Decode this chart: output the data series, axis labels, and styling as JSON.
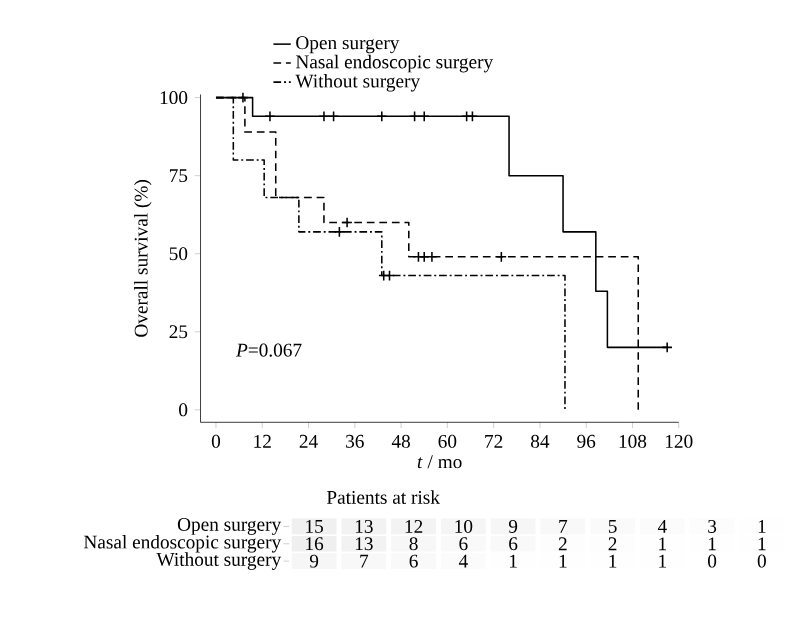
{
  "chart_data": [
    {
      "type": "step",
      "xlabel": "*t* / mo",
      "ylabel": "Overall survival (%)",
      "annotations": [
        "*P*=0.067"
      ],
      "xlim": [
        -4,
        120
      ],
      "ylim": [
        -4,
        101
      ],
      "xticks": [
        0,
        12,
        24,
        36,
        48,
        60,
        72,
        84,
        96,
        108,
        120
      ],
      "yticks": [
        0,
        25,
        50,
        75,
        100
      ],
      "legend": "top",
      "series": [
        {
          "name": "Open surgery",
          "color": "#000000",
          "line_style": "solid",
          "x": [
            0,
            9.5,
            76,
            90,
            98.5,
            101.5,
            117
          ],
          "values": [
            100,
            94,
            75,
            57,
            38,
            20,
            20
          ]
        },
        {
          "name": "Nasal endoscopic surgery",
          "color": "#000000",
          "line_style": "dashed",
          "x": [
            0,
            7.5,
            15.5,
            28,
            50,
            109.5
          ],
          "values": [
            100,
            89,
            68,
            60,
            49,
            0
          ]
        },
        {
          "name": "Without surgery",
          "color": "#000000",
          "line_style": "dashdot",
          "x": [
            0,
            4.5,
            12.5,
            21.5,
            43,
            90.5
          ],
          "values": [
            100,
            80,
            68,
            57,
            43,
            0
          ]
        },
        {
          "type": "scatter",
          "marker": "cross",
          "color": "#000000",
          "x": [
            7,
            14,
            28,
            30.5,
            43,
            51.5,
            54,
            65,
            66.5,
            117
          ],
          "values": [
            100,
            94,
            94,
            94,
            94,
            94,
            94,
            94,
            94,
            20
          ]
        },
        {
          "type": "scatter",
          "marker": "cross",
          "color": "#000000",
          "x": [
            34,
            52.5,
            54,
            56,
            74
          ],
          "values": [
            60,
            49,
            49,
            49,
            49
          ]
        },
        {
          "type": "scatter",
          "marker": "cross",
          "color": "#000000",
          "x": [
            32,
            43.5,
            45
          ],
          "values": [
            57,
            43,
            43
          ]
        }
      ]
    },
    {
      "type": "heatmap",
      "title": "Patients at risk",
      "categories": [
        null,
        null,
        null,
        null,
        null,
        null,
        null,
        null,
        null,
        null
      ],
      "y_categories": [
        "Open surgery",
        "Nasal endoscopic surgery",
        "Without surgery"
      ],
      "data_labels": true,
      "cells": [
        [
          15,
          13,
          12,
          10,
          9,
          7,
          5,
          4,
          3,
          1
        ],
        [
          16,
          13,
          8,
          6,
          6,
          2,
          2,
          1,
          1,
          1
        ],
        [
          9,
          7,
          6,
          4,
          1,
          1,
          1,
          1,
          0,
          0
        ]
      ],
      "cell_labels": [
        [
          "15",
          "13",
          "12",
          "10",
          "9",
          "7",
          "5",
          "4",
          "3",
          "1"
        ],
        [
          "16",
          "13",
          "8",
          "6",
          "6",
          "2",
          "2",
          "1",
          "1",
          "1"
        ],
        [
          "9",
          "7",
          "6",
          "4",
          "1",
          "1",
          "1",
          "1",
          "0",
          "0"
        ]
      ]
    }
  ]
}
